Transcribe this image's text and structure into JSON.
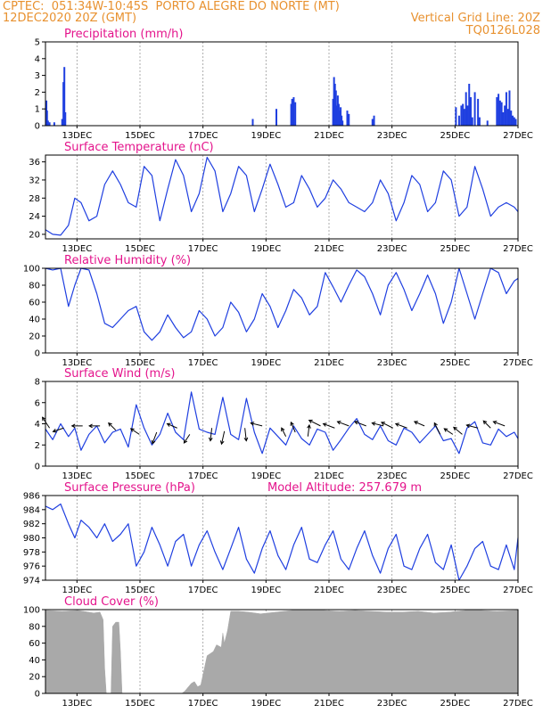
{
  "header": {
    "line1_left": "CPTEC:  051:34W-10:45S  PORTO ALEGRE DO NORTE (MT)",
    "line2_left": "12DEC2020 20Z (GMT)",
    "line2_right": "Vertical Grid Line: 20Z",
    "line3_right": "TQ0126L028"
  },
  "colors": {
    "header": "#e8912f",
    "title": "#e4148c",
    "series": "#1f3fe0",
    "cloud": "#a9a9a9",
    "arrow": "#000000"
  },
  "chart_data": [
    {
      "id": "precip",
      "type": "bar",
      "title": "Precipitation (mm/h)",
      "ylim": [
        0,
        5
      ],
      "yticks": [
        0,
        1,
        2,
        3,
        4,
        5
      ],
      "xticks": [
        "13DEC",
        "15DEC",
        "17DEC",
        "19DEC",
        "21DEC",
        "23DEC",
        "25DEC",
        "27DEC"
      ],
      "xtick_values": [
        0.17,
        2.17,
        4.17,
        6.17,
        8.17,
        10.17,
        12.17,
        14.17
      ],
      "xlim": [
        -0.83,
        14.17
      ],
      "x": [
        -0.8,
        -0.78,
        -0.75,
        -0.7,
        -0.55,
        -0.3,
        -0.26,
        -0.23,
        -0.2,
        5.75,
        6.5,
        6.97,
        7.0,
        7.05,
        7.1,
        8.3,
        8.33,
        8.36,
        8.39,
        8.42,
        8.45,
        8.48,
        8.51,
        8.54,
        8.57,
        8.6,
        8.75,
        8.8,
        9.55,
        9.6,
        12.2,
        12.3,
        12.37,
        12.42,
        12.47,
        12.52,
        12.57,
        12.62,
        12.67,
        12.72,
        12.8,
        12.9,
        12.95,
        13.2,
        13.5,
        13.55,
        13.6,
        13.65,
        13.7,
        13.75,
        13.8,
        13.85,
        13.9,
        13.95,
        14.0,
        14.05,
        14.1
      ],
      "values": [
        1.5,
        0.9,
        0.3,
        0.2,
        0.2,
        0.4,
        2.6,
        3.5,
        0.8,
        0.4,
        1.0,
        1.3,
        1.6,
        1.7,
        1.4,
        1.6,
        2.9,
        2.5,
        2.1,
        1.2,
        1.8,
        1.3,
        0.9,
        1.1,
        0.6,
        0.3,
        0.9,
        0.7,
        0.4,
        0.6,
        1.1,
        0.6,
        1.2,
        1.3,
        1.0,
        2.0,
        1.2,
        2.5,
        1.7,
        0.5,
        2.0,
        1.6,
        0.5,
        0.3,
        1.7,
        1.9,
        1.5,
        1.4,
        0.8,
        1.2,
        2.0,
        1.0,
        2.1,
        0.9,
        0.6,
        0.5,
        0.4
      ]
    },
    {
      "id": "temp",
      "type": "line",
      "title": "Surface Temperature (nC)",
      "ylim": [
        19,
        37.5
      ],
      "yticks": [
        20,
        24,
        28,
        32,
        36
      ],
      "xticks": [
        "13DEC",
        "15DEC",
        "17DEC",
        "19DEC",
        "21DEC",
        "23DEC",
        "25DEC",
        "27DEC"
      ],
      "xtick_values": [
        0.17,
        2.17,
        4.17,
        6.17,
        8.17,
        10.17,
        12.17,
        14.17
      ],
      "xlim": [
        -0.83,
        14.17
      ],
      "x": [
        -0.83,
        -0.6,
        -0.35,
        -0.1,
        0.1,
        0.3,
        0.55,
        0.8,
        1.05,
        1.3,
        1.55,
        1.8,
        2.05,
        2.3,
        2.55,
        2.8,
        3.05,
        3.3,
        3.55,
        3.8,
        4.05,
        4.3,
        4.55,
        4.8,
        5.05,
        5.3,
        5.55,
        5.8,
        6.05,
        6.3,
        6.55,
        6.8,
        7.05,
        7.3,
        7.55,
        7.8,
        8.05,
        8.3,
        8.55,
        8.8,
        9.05,
        9.3,
        9.55,
        9.8,
        10.05,
        10.3,
        10.55,
        10.8,
        11.05,
        11.3,
        11.55,
        11.8,
        12.05,
        12.3,
        12.55,
        12.8,
        13.05,
        13.3,
        13.55,
        13.8,
        14.05,
        14.17
      ],
      "values": [
        21,
        20,
        19.8,
        22,
        28,
        27,
        23,
        24,
        31,
        34,
        31,
        27,
        26,
        35,
        33,
        23,
        30,
        36.5,
        33,
        25,
        29,
        37,
        34,
        25,
        29,
        35,
        33,
        25,
        30,
        35.5,
        31,
        26,
        27,
        33,
        30,
        26,
        28,
        32,
        30,
        27,
        26,
        25,
        27,
        32,
        29,
        23,
        27,
        33,
        31,
        25,
        27,
        34,
        32,
        24,
        26,
        35,
        30,
        24,
        26,
        27,
        26,
        25
      ]
    },
    {
      "id": "rh",
      "type": "line",
      "title": "Relative Humidity (%)",
      "ylim": [
        0,
        100
      ],
      "yticks": [
        0,
        20,
        40,
        60,
        80,
        100
      ],
      "xticks": [
        "13DEC",
        "15DEC",
        "17DEC",
        "19DEC",
        "21DEC",
        "23DEC",
        "25DEC",
        "27DEC"
      ],
      "xtick_values": [
        0.17,
        2.17,
        4.17,
        6.17,
        8.17,
        10.17,
        12.17,
        14.17
      ],
      "xlim": [
        -0.83,
        14.17
      ],
      "x": [
        -0.83,
        -0.6,
        -0.35,
        -0.1,
        0.1,
        0.3,
        0.55,
        0.8,
        1.05,
        1.3,
        1.55,
        1.8,
        2.05,
        2.3,
        2.55,
        2.8,
        3.05,
        3.3,
        3.55,
        3.8,
        4.05,
        4.3,
        4.55,
        4.8,
        5.05,
        5.3,
        5.55,
        5.8,
        6.05,
        6.3,
        6.55,
        6.8,
        7.05,
        7.3,
        7.55,
        7.8,
        8.05,
        8.3,
        8.55,
        8.8,
        9.05,
        9.3,
        9.55,
        9.8,
        10.05,
        10.3,
        10.55,
        10.8,
        11.05,
        11.3,
        11.55,
        11.8,
        12.05,
        12.3,
        12.55,
        12.8,
        13.05,
        13.3,
        13.55,
        13.8,
        14.05,
        14.17
      ],
      "values": [
        100,
        98,
        100,
        55,
        80,
        100,
        98,
        70,
        35,
        30,
        40,
        50,
        55,
        25,
        15,
        25,
        45,
        30,
        18,
        25,
        50,
        40,
        20,
        30,
        60,
        48,
        25,
        40,
        70,
        55,
        30,
        50,
        75,
        65,
        45,
        55,
        95,
        78,
        60,
        80,
        98,
        90,
        70,
        45,
        80,
        95,
        75,
        50,
        70,
        92,
        70,
        35,
        60,
        100,
        70,
        40,
        70,
        100,
        95,
        70,
        85,
        88
      ]
    },
    {
      "id": "wind",
      "type": "line",
      "title": "Surface Wind (m/s)",
      "ylim": [
        0,
        8
      ],
      "yticks": [
        0,
        2,
        4,
        6,
        8
      ],
      "xticks": [
        "13DEC",
        "15DEC",
        "17DEC",
        "19DEC",
        "21DEC",
        "23DEC",
        "25DEC",
        "27DEC"
      ],
      "xtick_values": [
        0.17,
        2.17,
        4.17,
        6.17,
        8.17,
        10.17,
        12.17,
        14.17
      ],
      "xlim": [
        -0.83,
        14.17
      ],
      "x": [
        -0.83,
        -0.6,
        -0.35,
        -0.1,
        0.1,
        0.3,
        0.55,
        0.8,
        1.05,
        1.3,
        1.55,
        1.8,
        2.05,
        2.3,
        2.55,
        2.8,
        3.05,
        3.3,
        3.55,
        3.8,
        4.05,
        4.3,
        4.55,
        4.8,
        5.05,
        5.3,
        5.55,
        5.8,
        6.05,
        6.3,
        6.55,
        6.8,
        7.05,
        7.3,
        7.55,
        7.8,
        8.05,
        8.3,
        8.55,
        8.8,
        9.05,
        9.3,
        9.55,
        9.8,
        10.05,
        10.3,
        10.55,
        10.8,
        11.05,
        11.3,
        11.55,
        11.8,
        12.05,
        12.3,
        12.55,
        12.8,
        13.05,
        13.3,
        13.55,
        13.8,
        14.05,
        14.17
      ],
      "values": [
        3.5,
        2.5,
        4.0,
        2.8,
        3.6,
        1.5,
        3.0,
        3.8,
        2.2,
        3.2,
        3.5,
        1.8,
        5.8,
        3.6,
        2.0,
        3.0,
        5.0,
        3.2,
        2.5,
        7.0,
        3.5,
        3.2,
        3.0,
        6.5,
        3.0,
        2.5,
        6.4,
        3.2,
        1.2,
        3.6,
        2.8,
        2.0,
        3.8,
        2.6,
        2.0,
        3.5,
        3.2,
        1.5,
        2.5,
        3.6,
        4.5,
        3.0,
        2.5,
        3.8,
        2.4,
        2.0,
        3.6,
        3.2,
        2.2,
        3.0,
        3.8,
        2.4,
        2.6,
        1.2,
        3.6,
        4.2,
        2.2,
        2.0,
        3.5,
        2.8,
        3.2,
        2.6
      ],
      "vectors": [
        {
          "x": -0.7,
          "y": 3.6,
          "u": -1.0,
          "v": 1.5
        },
        {
          "x": -0.25,
          "y": 3.6,
          "u": -1.5,
          "v": -0.5
        },
        {
          "x": 0.35,
          "y": 3.8,
          "u": -1.5,
          "v": 0.0
        },
        {
          "x": 0.9,
          "y": 3.8,
          "u": -1.5,
          "v": 0.0
        },
        {
          "x": 1.4,
          "y": 3.4,
          "u": -1.0,
          "v": 1.0
        },
        {
          "x": 2.15,
          "y": 3.0,
          "u": -1.2,
          "v": 0.8
        },
        {
          "x": 2.7,
          "y": 3.2,
          "u": -0.6,
          "v": -1.6
        },
        {
          "x": 3.35,
          "y": 3.6,
          "u": -1.4,
          "v": 0.6
        },
        {
          "x": 3.75,
          "y": 3.0,
          "u": -0.8,
          "v": -1.2
        },
        {
          "x": 4.45,
          "y": 3.6,
          "u": -0.2,
          "v": -1.8
        },
        {
          "x": 4.85,
          "y": 3.3,
          "u": -0.4,
          "v": -1.8
        },
        {
          "x": 5.5,
          "y": 3.6,
          "u": 0.2,
          "v": -1.8
        },
        {
          "x": 6.05,
          "y": 3.8,
          "u": -1.6,
          "v": 0.4
        },
        {
          "x": 6.8,
          "y": 2.8,
          "u": -0.6,
          "v": 1.2
        },
        {
          "x": 7.1,
          "y": 3.2,
          "u": -0.6,
          "v": 1.4
        },
        {
          "x": 7.5,
          "y": 2.8,
          "u": 0.2,
          "v": 1.6
        },
        {
          "x": 7.9,
          "y": 3.8,
          "u": -1.6,
          "v": 0.8
        },
        {
          "x": 8.35,
          "y": 3.6,
          "u": -1.6,
          "v": 0.6
        },
        {
          "x": 8.8,
          "y": 3.8,
          "u": -1.6,
          "v": 0.6
        },
        {
          "x": 9.35,
          "y": 3.8,
          "u": -1.6,
          "v": 0.6
        },
        {
          "x": 9.9,
          "y": 3.8,
          "u": -1.6,
          "v": 0.4
        },
        {
          "x": 10.2,
          "y": 3.6,
          "u": -1.6,
          "v": 0.8
        },
        {
          "x": 10.65,
          "y": 3.6,
          "u": -1.6,
          "v": 0.6
        },
        {
          "x": 11.2,
          "y": 3.8,
          "u": -1.4,
          "v": 0.6
        },
        {
          "x": 11.7,
          "y": 3.0,
          "u": -0.8,
          "v": 1.6
        },
        {
          "x": 12.1,
          "y": 3.0,
          "u": -1.2,
          "v": 0.8
        },
        {
          "x": 12.4,
          "y": 3.0,
          "u": -1.2,
          "v": 1.0
        },
        {
          "x": 12.9,
          "y": 3.6,
          "u": -1.6,
          "v": 0.4
        },
        {
          "x": 13.3,
          "y": 3.6,
          "u": -1.0,
          "v": 1.0
        },
        {
          "x": 13.75,
          "y": 3.8,
          "u": -1.6,
          "v": 0.6
        }
      ]
    },
    {
      "id": "pres",
      "type": "line",
      "title": "Surface Pressure (hPa)",
      "annotation": "Model Altitude: 257.679 m",
      "ylim": [
        974,
        986
      ],
      "yticks": [
        974,
        976,
        978,
        980,
        982,
        984,
        986
      ],
      "xticks": [
        "13DEC",
        "15DEC",
        "17DEC",
        "19DEC",
        "21DEC",
        "23DEC",
        "25DEC",
        "27DEC"
      ],
      "xtick_values": [
        0.17,
        2.17,
        4.17,
        6.17,
        8.17,
        10.17,
        12.17,
        14.17
      ],
      "xlim": [
        -0.83,
        14.17
      ],
      "x": [
        -0.83,
        -0.6,
        -0.35,
        -0.1,
        0.1,
        0.3,
        0.55,
        0.8,
        1.05,
        1.3,
        1.55,
        1.8,
        2.05,
        2.3,
        2.55,
        2.8,
        3.05,
        3.3,
        3.55,
        3.8,
        4.05,
        4.3,
        4.55,
        4.8,
        5.05,
        5.3,
        5.55,
        5.8,
        6.05,
        6.3,
        6.55,
        6.8,
        7.05,
        7.3,
        7.55,
        7.8,
        8.05,
        8.3,
        8.55,
        8.8,
        9.05,
        9.3,
        9.55,
        9.8,
        10.05,
        10.3,
        10.55,
        10.8,
        11.05,
        11.3,
        11.55,
        11.8,
        12.05,
        12.3,
        12.55,
        12.8,
        13.05,
        13.3,
        13.55,
        13.8,
        14.05,
        14.17
      ],
      "values": [
        984.5,
        984.0,
        984.8,
        982.0,
        980.0,
        982.5,
        981.5,
        980.0,
        982.0,
        979.5,
        980.5,
        982.0,
        976.0,
        978.0,
        981.5,
        979.0,
        976.0,
        979.5,
        980.5,
        976.0,
        979.0,
        981.0,
        978.0,
        975.5,
        978.5,
        981.5,
        977.0,
        975.0,
        978.5,
        981.0,
        977.5,
        975.5,
        979.0,
        981.5,
        977.0,
        976.5,
        979.0,
        981.0,
        977.0,
        975.5,
        978.5,
        981.0,
        977.5,
        975.0,
        978.5,
        980.5,
        976.0,
        975.5,
        978.5,
        980.5,
        976.5,
        975.5,
        979.0,
        974.0,
        976.0,
        978.5,
        979.5,
        976.0,
        975.5,
        979.0,
        975.5,
        980.0
      ]
    },
    {
      "id": "cloud",
      "type": "area",
      "title": "Cloud Cover (%)",
      "ylim": [
        0,
        100
      ],
      "yticks": [
        0,
        20,
        40,
        60,
        80,
        100
      ],
      "xticks": [
        "13DEC",
        "15DEC",
        "17DEC",
        "19DEC",
        "21DEC",
        "23DEC",
        "25DEC",
        "27DEC"
      ],
      "xtick_values": [
        0.17,
        2.17,
        4.17,
        6.17,
        8.17,
        10.17,
        12.17,
        14.17
      ],
      "xlim": [
        -0.83,
        14.17
      ],
      "x": [
        -0.83,
        -0.3,
        0.2,
        0.7,
        0.9,
        1.0,
        1.05,
        1.1,
        1.25,
        1.3,
        1.4,
        1.5,
        1.55,
        1.6,
        1.65,
        1.75,
        2.5,
        3.0,
        3.3,
        3.5,
        3.6,
        3.8,
        3.9,
        4.0,
        4.1,
        4.3,
        4.5,
        4.6,
        4.75,
        4.8,
        4.85,
        4.95,
        5.05,
        5.3,
        5.6,
        6.0,
        6.5,
        7.0,
        7.5,
        8.0,
        8.5,
        9.0,
        9.5,
        10.0,
        10.5,
        11.0,
        11.5,
        12.0,
        12.5,
        13.0,
        13.5,
        14.17
      ],
      "values": [
        99,
        98,
        99,
        96,
        97,
        88,
        30,
        0,
        0,
        80,
        85,
        85,
        50,
        0,
        0,
        0,
        0,
        0,
        0,
        0,
        3,
        12,
        14,
        8,
        10,
        45,
        50,
        58,
        55,
        72,
        60,
        75,
        98,
        98,
        97,
        95,
        97,
        99,
        99,
        99,
        98,
        99,
        98,
        97,
        97,
        98,
        96,
        97,
        99,
        99,
        98,
        99
      ]
    }
  ]
}
